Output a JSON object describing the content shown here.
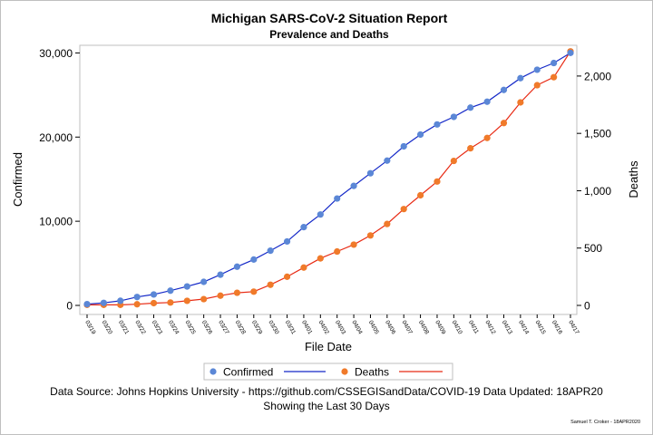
{
  "chart_data": {
    "type": "line",
    "title": "Michigan SARS-CoV-2 Situation Report",
    "subtitle": "Prevalence and Deaths",
    "xlabel": "File Date",
    "ylabel": "Confirmed",
    "y2label": "Deaths",
    "categories": [
      "03/19",
      "03/20",
      "03/21",
      "03/22",
      "03/23",
      "03/24",
      "03/25",
      "03/26",
      "03/27",
      "03/28",
      "03/29",
      "03/30",
      "03/31",
      "04/01",
      "04/02",
      "04/03",
      "04/04",
      "04/05",
      "04/06",
      "04/07",
      "04/08",
      "04/09",
      "04/10",
      "04/11",
      "04/12",
      "04/13",
      "04/14",
      "04/15",
      "04/16",
      "04/17"
    ],
    "ylim": [
      0,
      31000
    ],
    "y2lim": [
      0,
      2275
    ],
    "yticks": [
      0,
      10000,
      20000,
      30000
    ],
    "ytick_labels": [
      "0",
      "10,000",
      "20,000",
      "30,000"
    ],
    "y2ticks": [
      0,
      500,
      1000,
      1500,
      2000
    ],
    "y2tick_labels": [
      "0",
      "500",
      "1,000",
      "1,500",
      "2,000"
    ],
    "series": [
      {
        "name": "Confirmed",
        "axis": "left",
        "marker_color": "#5b87d6",
        "line_color": "#1428c8",
        "values": [
          150,
          300,
          550,
          1000,
          1300,
          1750,
          2250,
          2800,
          3650,
          4600,
          5450,
          6500,
          7600,
          9300,
          10800,
          12700,
          14200,
          15700,
          17200,
          18900,
          20300,
          21500,
          22400,
          23500,
          24200,
          25600,
          27000,
          28000,
          28800,
          30000
        ]
      },
      {
        "name": "Deaths",
        "axis": "right",
        "marker_color": "#f07a2a",
        "line_color": "#e82a14",
        "values": [
          5,
          5,
          5,
          10,
          20,
          25,
          40,
          55,
          85,
          110,
          120,
          180,
          250,
          330,
          410,
          470,
          530,
          610,
          710,
          840,
          960,
          1080,
          1260,
          1370,
          1460,
          1590,
          1770,
          1920,
          1990,
          2215
        ]
      }
    ],
    "legend_position": "bottom",
    "grid": false
  },
  "legend": {
    "confirmed_label": "Confirmed",
    "deaths_label": "Deaths"
  },
  "footnote": {
    "line1": "Data Source: Johns Hopkins University - https://github.com/CSSEGISandData/COVID-19 Data Updated: 18APR20",
    "line2": "Showing the Last 30 Days"
  },
  "credit": "Samuel T. Croker - 18APR2020"
}
